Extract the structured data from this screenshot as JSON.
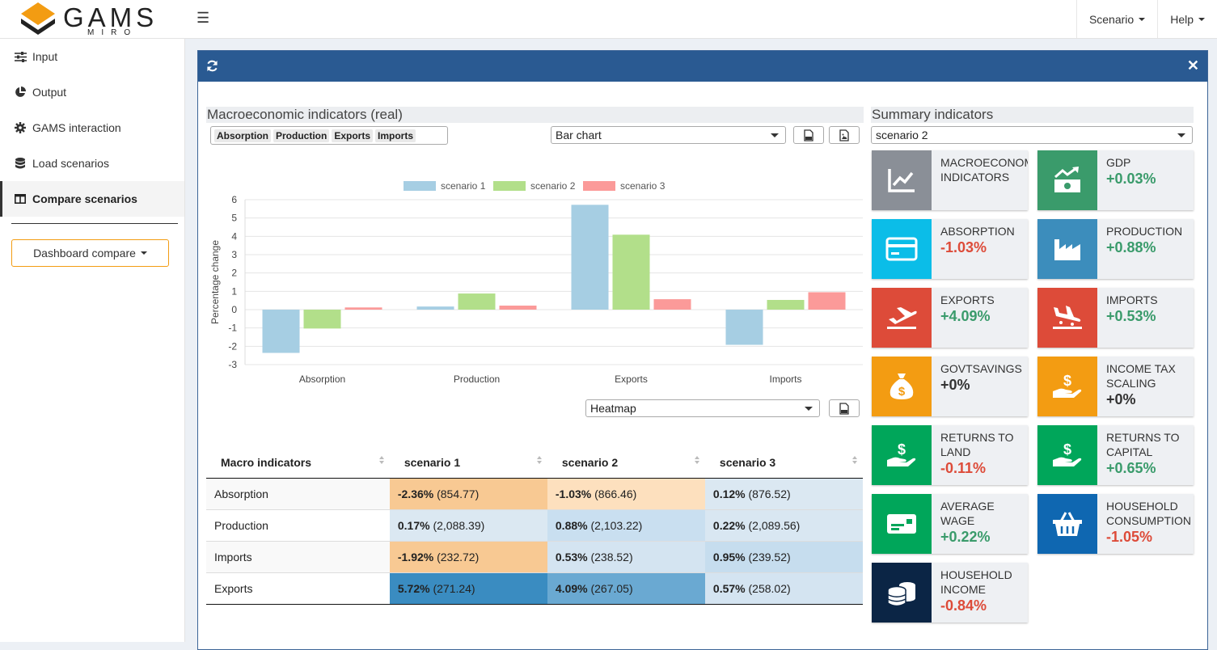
{
  "header": {
    "logo_text": "GAMS",
    "logo_sub": "MIRO",
    "nav": [
      "Scenario",
      "Help"
    ]
  },
  "sidebar": {
    "items": [
      {
        "label": "Input",
        "icon": "sliders-icon"
      },
      {
        "label": "Output",
        "icon": "pie-chart-icon"
      },
      {
        "label": "GAMS interaction",
        "icon": "gear-icon"
      },
      {
        "label": "Load scenarios",
        "icon": "database-icon"
      },
      {
        "label": "Compare scenarios",
        "icon": "columns-icon",
        "active": true
      }
    ],
    "dashboard_button": "Dashboard compare"
  },
  "macro": {
    "title": "Macroeconomic indicators (real)",
    "chips": [
      "Absorption",
      "Production",
      "Exports",
      "Imports"
    ],
    "chart_select": "Bar chart",
    "table_select": "Heatmap"
  },
  "chart_data": {
    "type": "bar",
    "categories": [
      "Absorption",
      "Production",
      "Exports",
      "Imports"
    ],
    "series": [
      {
        "name": "scenario 1",
        "values": [
          -2.36,
          0.17,
          5.72,
          -1.92
        ],
        "color": "#a6cee3"
      },
      {
        "name": "scenario 2",
        "values": [
          -1.03,
          0.88,
          4.09,
          0.53
        ],
        "color": "#b2df8a"
      },
      {
        "name": "scenario 3",
        "values": [
          0.12,
          0.22,
          0.57,
          0.95
        ],
        "color": "#fb9a99"
      }
    ],
    "ylabel": "Percentage change",
    "ylim": [
      -3,
      6
    ],
    "yticks": [
      6,
      5,
      4,
      3,
      2,
      1,
      0,
      -1,
      -2,
      -3
    ],
    "legend": "top",
    "grid": true
  },
  "table": {
    "headers": [
      "Macro indicators",
      "scenario 1",
      "scenario 2",
      "scenario 3"
    ],
    "rows": [
      {
        "label": "Absorption",
        "cells": [
          {
            "pct": "-2.36%",
            "abs": "(854.77)",
            "bg": "#f8c993"
          },
          {
            "pct": "-1.03%",
            "abs": "(866.46)",
            "bg": "#fde0be"
          },
          {
            "pct": "0.12%",
            "abs": "(876.52)",
            "bg": "#dbe8f2"
          }
        ]
      },
      {
        "label": "Production",
        "cells": [
          {
            "pct": "0.17%",
            "abs": "(2,088.39)",
            "bg": "#dbe8f2"
          },
          {
            "pct": "0.88%",
            "abs": "(2,103.22)",
            "bg": "#c9dff0"
          },
          {
            "pct": "0.22%",
            "abs": "(2,089.56)",
            "bg": "#d9e7f2"
          }
        ]
      },
      {
        "label": "Imports",
        "cells": [
          {
            "pct": "-1.92%",
            "abs": "(232.72)",
            "bg": "#f8c993"
          },
          {
            "pct": "0.53%",
            "abs": "(238.52)",
            "bg": "#d4e4f1"
          },
          {
            "pct": "0.95%",
            "abs": "(239.52)",
            "bg": "#c6ddee"
          }
        ]
      },
      {
        "label": "Exports",
        "cells": [
          {
            "pct": "5.72%",
            "abs": "(271.24)",
            "bg": "#3a8cc1"
          },
          {
            "pct": "4.09%",
            "abs": "(267.05)",
            "bg": "#6aa9d2"
          },
          {
            "pct": "0.57%",
            "abs": "(258.02)",
            "bg": "#d4e4f1"
          }
        ]
      }
    ]
  },
  "summary": {
    "title": "Summary indicators",
    "select": "scenario 2",
    "tiles": [
      {
        "label": "MACROECONOMIC INDICATORS",
        "value": "",
        "color": "#8a8f97",
        "icon": "line-chart-icon",
        "vcolor": "#333"
      },
      {
        "label": "GDP",
        "value": "+0.03%",
        "color": "#3a9b6b",
        "icon": "money-growth-icon",
        "vcolor": "#3a9b6b"
      },
      {
        "label": "ABSORPTION",
        "value": "-1.03%",
        "color": "#0bbde8",
        "icon": "credit-card-icon",
        "vcolor": "#dd4b39"
      },
      {
        "label": "PRODUCTION",
        "value": "+0.88%",
        "color": "#3c8dbc",
        "icon": "factory-icon",
        "vcolor": "#3a9b6b"
      },
      {
        "label": "EXPORTS",
        "value": "+4.09%",
        "color": "#dd4b39",
        "icon": "plane-departure-icon",
        "vcolor": "#3a9b6b"
      },
      {
        "label": "IMPORTS",
        "value": "+0.53%",
        "color": "#dd4b39",
        "icon": "plane-arrival-icon",
        "vcolor": "#3a9b6b"
      },
      {
        "label": "GOVTSAVINGS",
        "value": "+0%",
        "color": "#f39c12",
        "icon": "money-bag-icon",
        "vcolor": "#333"
      },
      {
        "label": "INCOME TAX SCALING",
        "value": "+0%",
        "color": "#f39c12",
        "icon": "hand-dollar-icon",
        "vcolor": "#333"
      },
      {
        "label": "RETURNS TO LAND",
        "value": "-0.11%",
        "color": "#00a65a",
        "icon": "hand-dollar-icon",
        "vcolor": "#dd4b39"
      },
      {
        "label": "RETURNS TO CAPITAL",
        "value": "+0.65%",
        "color": "#00a65a",
        "icon": "hand-dollar-icon",
        "vcolor": "#3a9b6b"
      },
      {
        "label": "AVERAGE WAGE",
        "value": "+0.22%",
        "color": "#00a65a",
        "icon": "money-bill-icon",
        "vcolor": "#3a9b6b"
      },
      {
        "label": "HOUSEHOLD CONSUMPTION",
        "value": "-1.05%",
        "color": "#0f67b1",
        "icon": "basket-icon",
        "vcolor": "#dd4b39"
      },
      {
        "label": "HOUSEHOLD INCOME",
        "value": "-0.84%",
        "color": "#0b2545",
        "icon": "coins-icon",
        "vcolor": "#dd4b39"
      }
    ]
  }
}
